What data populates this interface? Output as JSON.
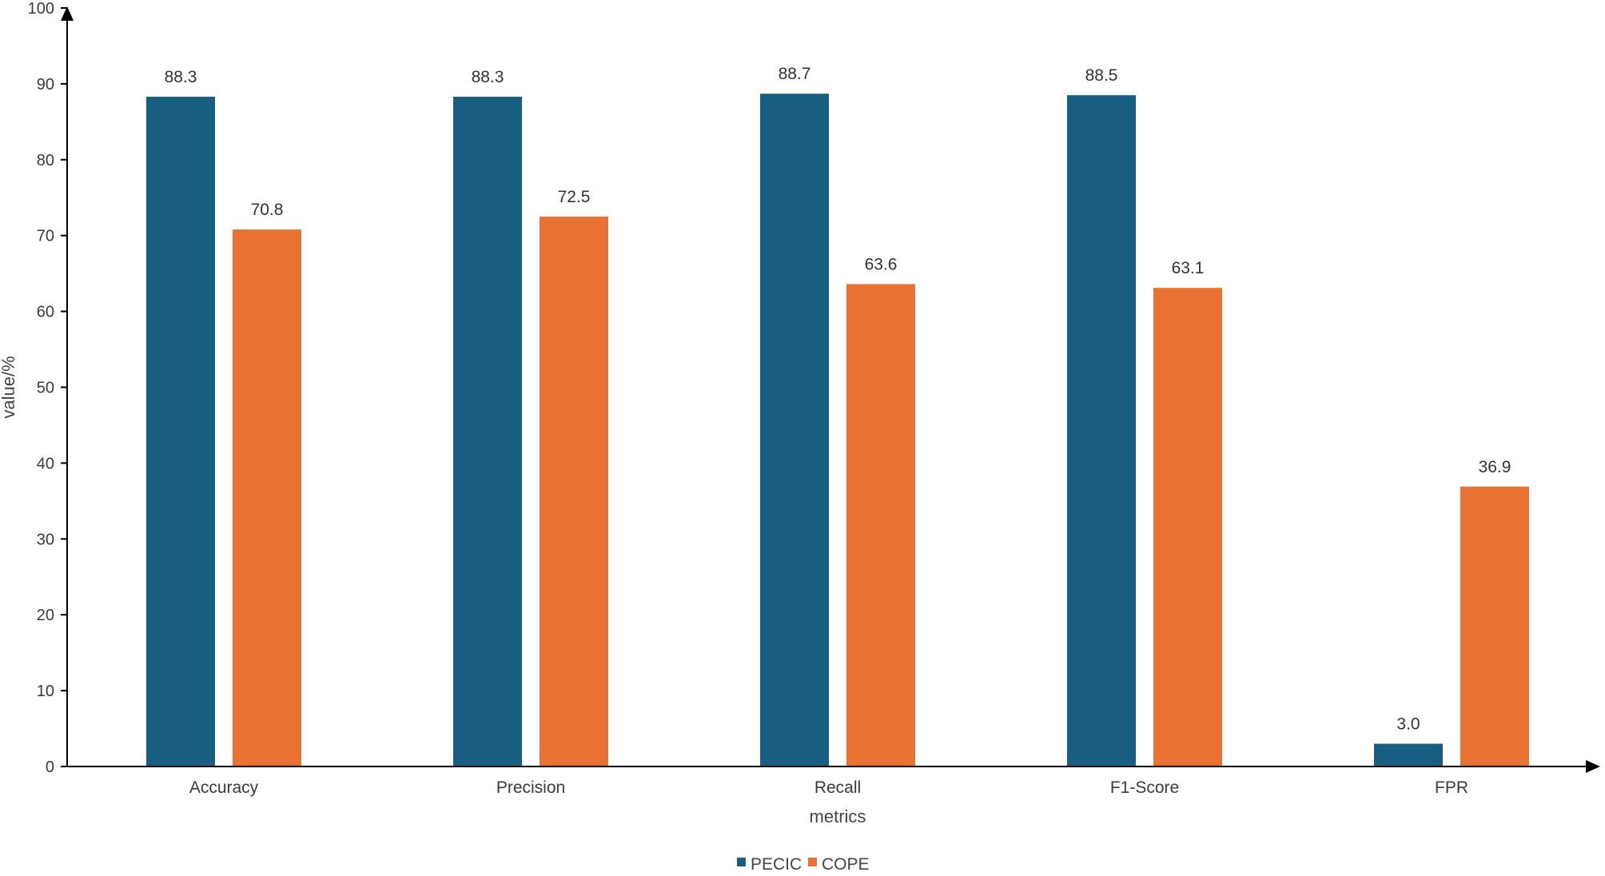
{
  "chart_data": {
    "type": "bar",
    "categories": [
      "Accuracy",
      "Precision",
      "Recall",
      "F1-Score",
      "FPR"
    ],
    "series": [
      {
        "name": "PECIC",
        "values": [
          88.3,
          88.3,
          88.7,
          88.5,
          3.0
        ],
        "color": "#185e80"
      },
      {
        "name": "COPE",
        "values": [
          70.8,
          72.5,
          63.6,
          63.1,
          36.9
        ],
        "color": "#e97232"
      }
    ],
    "xlabel": "metrics",
    "ylabel": "value/%",
    "ylim": [
      0,
      100
    ],
    "yticks": [
      0,
      10,
      20,
      30,
      40,
      50,
      60,
      70,
      80,
      90,
      100
    ],
    "data_labels": [
      [
        "88.3",
        "88.3",
        "88.7",
        "88.5",
        "3.0"
      ],
      [
        "70.8",
        "72.5",
        "63.6",
        "63.1",
        "36.9"
      ]
    ],
    "grid": false,
    "legend_position": "bottom-center",
    "axis_color": "#000000",
    "label_color": "#3a3a3a"
  }
}
